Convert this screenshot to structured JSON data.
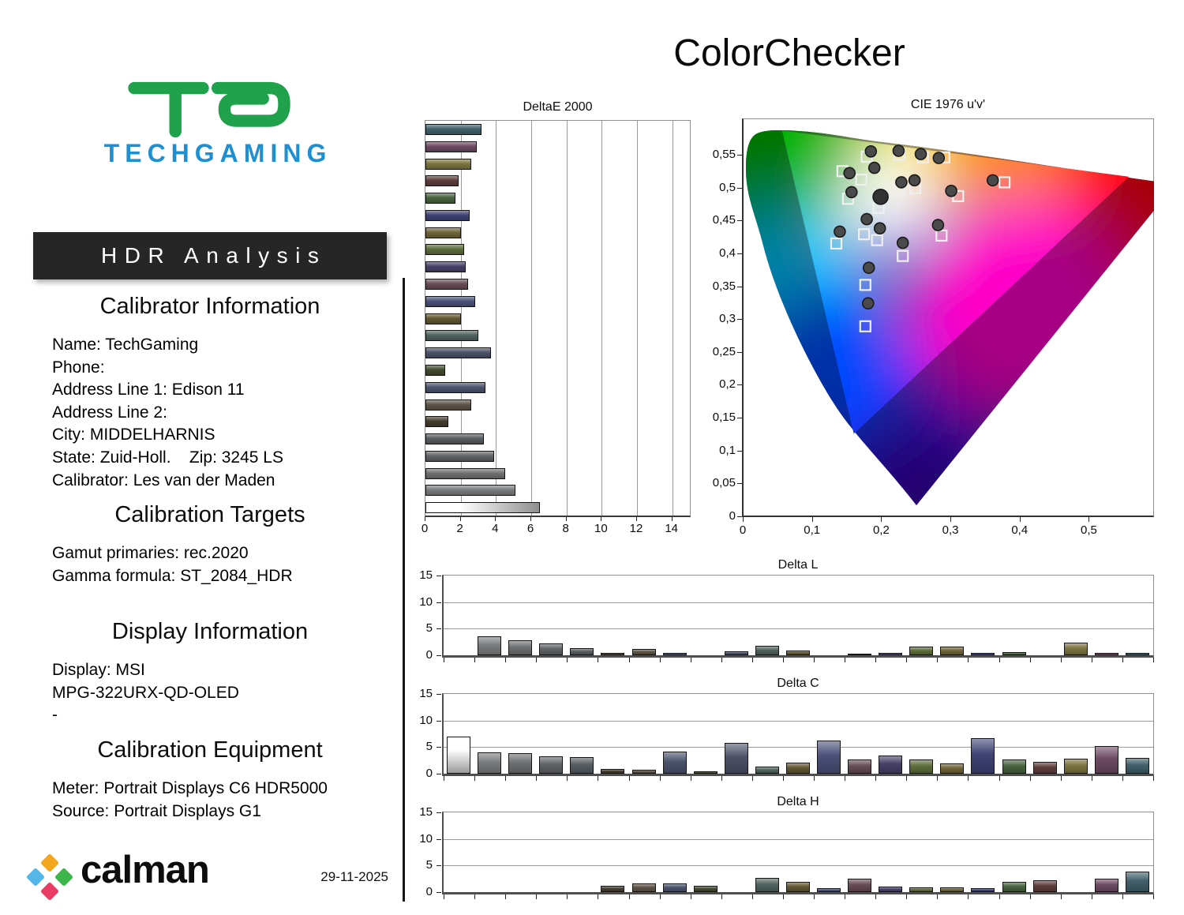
{
  "page_title": "ColorChecker",
  "brand_logo": {
    "wordmark": "TECHGAMING",
    "monogram_color": "#1fa24b",
    "wordmark_color": "#1e8fd1"
  },
  "banner": {
    "label": "HDR Analysis",
    "bg": "#262626",
    "fg": "#ffffff"
  },
  "info_sections": {
    "calibrator": {
      "heading": "Calibrator Information",
      "lines": [
        "Name: TechGaming",
        "Phone:",
        "Address Line 1: Edison 11",
        "Address Line 2:",
        "City: MIDDELHARNIS",
        "State: Zuid-Holl.    Zip: 3245 LS",
        "Calibrator: Les van der Maden"
      ]
    },
    "targets": {
      "heading": "Calibration Targets",
      "lines": [
        "Gamut primaries: rec.2020",
        "Gamma formula: ST_2084_HDR"
      ]
    },
    "display": {
      "heading": "Display Information",
      "lines": [
        "Display: MSI",
        "MPG-322URX-QD-OLED",
        "-"
      ]
    },
    "equipment": {
      "heading": "Calibration Equipment",
      "lines": [
        "Meter: Portrait Displays C6 HDR5000",
        "Source: Portrait Displays G1"
      ]
    }
  },
  "footer": {
    "brand": "calman",
    "date": "29-11-2025",
    "mark_colors": {
      "top": "#f2a71f",
      "left": "#53b7e8",
      "right": "#3cb54b",
      "bottom": "#ea3d63"
    }
  },
  "patch_colors": [
    "white",
    "#7b7d7f",
    "#6e7072",
    "#616467",
    "#575d61",
    "#453c2e",
    "#5d5447",
    "#4b546e",
    "#414b2e",
    "#4c5268",
    "#50635f",
    "#625732",
    "#4b5179",
    "#684c55",
    "#474067",
    "#5e6d3b",
    "#6f6538",
    "#3f4374",
    "#47633e",
    "#5e3e3d",
    "#7c743f",
    "#6d4b63",
    "#41606c"
  ],
  "chart_data": [
    {
      "type": "bar",
      "orientation": "horizontal",
      "title": "DeltaE 2000",
      "xlim": [
        0,
        15
      ],
      "xticks": [
        0,
        2,
        4,
        6,
        8,
        10,
        12,
        14
      ],
      "grid": true,
      "color_order": "reversed_patch_colors",
      "values": [
        3.2,
        2.9,
        2.6,
        1.9,
        1.7,
        2.5,
        2.0,
        2.2,
        2.3,
        2.4,
        2.8,
        2.0,
        3.0,
        3.7,
        1.1,
        3.4,
        2.6,
        1.3,
        3.3,
        3.9,
        4.5,
        5.1,
        6.5
      ]
    },
    {
      "type": "scatter",
      "title": "CIE 1976 u'v'",
      "xlim": [
        0,
        0.593
      ],
      "ylim": [
        0,
        0.604
      ],
      "xtick_labels": [
        "0",
        "0,1",
        "0,2",
        "0,3",
        "0,4",
        "0,5"
      ],
      "xtick_values": [
        0,
        0.1,
        0.2,
        0.3,
        0.4,
        0.5
      ],
      "ytick_labels": [
        "0",
        "0,05",
        "0,1",
        "0,15",
        "0,2",
        "0,25",
        "0,3",
        "0,35",
        "0,4",
        "0,45",
        "0,5",
        "0,55"
      ],
      "ytick_values": [
        0,
        0.05,
        0.1,
        0.15,
        0.2,
        0.25,
        0.3,
        0.35,
        0.4,
        0.45,
        0.5,
        0.55
      ],
      "gamut": "rec.2020",
      "gamut_triangle_uv": [
        [
          0.0556,
          0.5868
        ],
        [
          0.5566,
          0.5165
        ],
        [
          0.1593,
          0.1258
        ]
      ],
      "points": [
        {
          "target": [
            0.143,
            0.525
          ],
          "measured": [
            0.153,
            0.522
          ]
        },
        {
          "target": [
            0.178,
            0.547
          ],
          "measured": [
            0.184,
            0.555
          ]
        },
        {
          "target": [
            0.17,
            0.512
          ],
          "measured": [
            0.189,
            0.53
          ]
        },
        {
          "target": [
            0.225,
            0.55
          ],
          "measured": [
            0.224,
            0.556
          ]
        },
        {
          "target": [
            0.259,
            0.546
          ],
          "measured": [
            0.256,
            0.551
          ]
        },
        {
          "target": [
            0.29,
            0.546
          ],
          "measured": [
            0.282,
            0.545
          ]
        },
        {
          "target": [
            0.225,
            0.497
          ],
          "measured": [
            0.228,
            0.508
          ]
        },
        {
          "target": [
            0.248,
            0.499
          ],
          "measured": [
            0.247,
            0.511
          ]
        },
        {
          "target": [
            0.31,
            0.487
          ],
          "measured": [
            0.3,
            0.495
          ]
        },
        {
          "target": [
            0.377,
            0.508
          ],
          "measured": [
            0.36,
            0.511
          ]
        },
        {
          "target": [
            0.151,
            0.483
          ],
          "measured": [
            0.156,
            0.493
          ]
        },
        {
          "target": [
            0.195,
            0.469
          ],
          "measured": [
            0.198,
            0.486
          ],
          "size": "large"
        },
        {
          "target": [
            0.286,
            0.427
          ],
          "measured": [
            0.281,
            0.443
          ]
        },
        {
          "target": [
            0.134,
            0.415
          ],
          "measured": [
            0.139,
            0.433
          ]
        },
        {
          "target": [
            0.193,
            0.42
          ],
          "measured": [
            0.197,
            0.438
          ]
        },
        {
          "target": [
            0.23,
            0.396
          ],
          "measured": [
            0.23,
            0.416
          ]
        },
        {
          "target": [
            0.176,
            0.352
          ],
          "measured": [
            0.181,
            0.378
          ]
        },
        {
          "target": [
            0.176,
            0.289
          ],
          "measured": [
            0.18,
            0.324
          ]
        },
        {
          "target": [
            0.174,
            0.429
          ],
          "measured": [
            0.178,
            0.452
          ]
        }
      ]
    },
    {
      "type": "bar",
      "orientation": "vertical",
      "title": "Delta L",
      "ylim": [
        0,
        15
      ],
      "yticks": [
        0,
        5,
        10,
        15
      ],
      "values": [
        0,
        3.5,
        2.8,
        2.2,
        1.3,
        0.4,
        1.2,
        0.4,
        0,
        0.7,
        1.8,
        0.9,
        0,
        0.3,
        0.5,
        1.7,
        1.6,
        0.4,
        0.6,
        0,
        2.4,
        0.4,
        0.5
      ]
    },
    {
      "type": "bar",
      "orientation": "vertical",
      "title": "Delta C",
      "ylim": [
        0,
        15
      ],
      "yticks": [
        0,
        5,
        10,
        15
      ],
      "values": [
        7.0,
        4.0,
        3.9,
        3.3,
        3.1,
        0.9,
        0.7,
        4.2,
        0.5,
        5.8,
        1.3,
        2.1,
        6.2,
        2.7,
        3.4,
        2.7,
        2.0,
        6.7,
        2.7,
        2.3,
        2.8,
        5.2,
        2.9
      ]
    },
    {
      "type": "bar",
      "orientation": "vertical",
      "title": "Delta H",
      "ylim": [
        0,
        15
      ],
      "yticks": [
        0,
        5,
        10,
        15
      ],
      "values": [
        0,
        0,
        0,
        0,
        0,
        1.2,
        1.6,
        1.7,
        1.2,
        0,
        2.7,
        2.0,
        0.8,
        2.6,
        1.1,
        0.9,
        0.9,
        0.8,
        1.9,
        2.2,
        0,
        2.5,
        3.8
      ]
    }
  ]
}
